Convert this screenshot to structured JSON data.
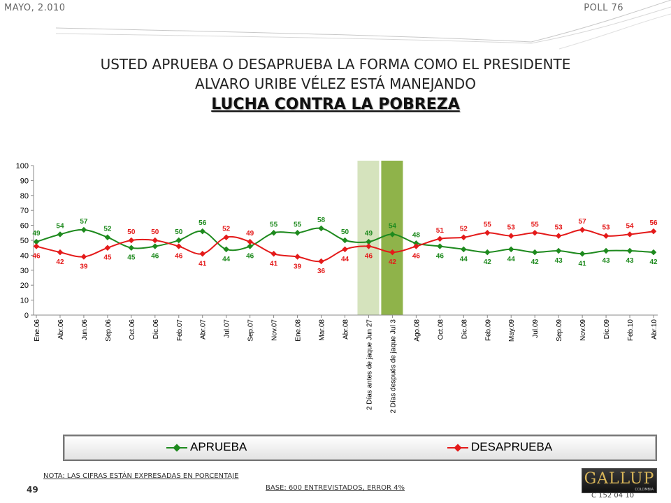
{
  "header": {
    "date": "MAYO, 2.010",
    "poll": "POLL 76"
  },
  "title": {
    "line1": "USTED APRUEBA O DESAPRUEBA LA FORMA COMO EL PRESIDENTE",
    "line2": "ALVARO URIBE VÉLEZ ESTÁ MANEJANDO",
    "line3": "LUCHA CONTRA LA POBREZA"
  },
  "colors": {
    "aprueba": "#1e8a1e",
    "desaprueba": "#e41a1a",
    "band1": "#d5e3bd",
    "band2": "#8fb34a"
  },
  "chart_data": {
    "type": "line",
    "title": "",
    "xlabel": "",
    "ylabel": "",
    "ylim": [
      0,
      100
    ],
    "yticks": [
      0,
      10,
      20,
      30,
      40,
      50,
      60,
      70,
      80,
      90,
      100
    ],
    "grid": false,
    "legend": "bottom",
    "categories": [
      "Ene.06",
      "Abr.06",
      "Jun.06",
      "Sep.06",
      "Oct.06",
      "Dic.06",
      "Feb.07",
      "Abr.07",
      "Jul.07",
      "Sep.07",
      "Nov.07",
      "Ene.08",
      "Mar.08",
      "Abr.08",
      "2 Días antes de jaque Jun 27",
      "2 Días después de jaque Jul 3",
      "Ago.08",
      "Oct.08",
      "Dic.08",
      "Feb.09",
      "May.09",
      "Jul.09",
      "Sep.09",
      "Nov.09",
      "Dic.09",
      "Feb.10",
      "Abr.10"
    ],
    "highlighted_categories": [
      "2 Días antes de jaque Jun 27",
      "2 Días después de jaque Jul 3"
    ],
    "series": [
      {
        "name": "APRUEBA",
        "values": [
          49,
          54,
          57,
          52,
          45,
          46,
          50,
          56,
          44,
          46,
          55,
          55,
          58,
          50,
          49,
          54,
          48,
          46,
          44,
          42,
          44,
          42,
          43,
          41,
          43,
          43,
          42
        ]
      },
      {
        "name": "DESAPRUEBA",
        "values": [
          46,
          42,
          39,
          45,
          50,
          50,
          46,
          41,
          52,
          49,
          41,
          39,
          36,
          44,
          46,
          42,
          46,
          51,
          52,
          55,
          53,
          55,
          53,
          57,
          53,
          54,
          56
        ]
      }
    ]
  },
  "footer": {
    "note": "NOTA: LAS CIFRAS ESTÁN EXPRESADAS EN PORCENTAJE",
    "page_number": "49",
    "base": "BASE: 600 ENTREVISTADOS, ERROR 4%",
    "logo": "GALLUP",
    "logo_sub": "COLOMBIA",
    "code": "C 152 04 10"
  }
}
